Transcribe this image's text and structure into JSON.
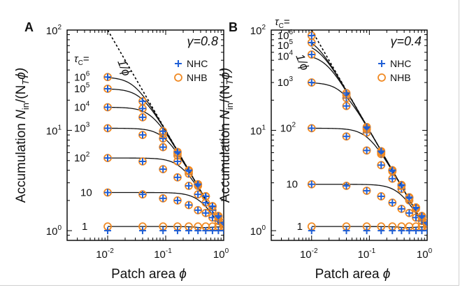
{
  "chart_data": [
    {
      "type": "scatter",
      "panel_label": "A",
      "xlabel_text": "Patch area ",
      "xlabel_symbol": "ϕ",
      "ylabel_text": "Accumulation ",
      "ylabel_symbol": "N",
      "ylabel_sub": "in",
      "ylabel_rest": "/(N",
      "ylabel_sub2": "T",
      "ylabel_end": "ϕ)",
      "xscale": "log",
      "yscale": "log",
      "xlim": [
        0.002,
        1
      ],
      "ylim": [
        0.8,
        100
      ],
      "x_ticks": [
        0.01,
        0.1,
        1
      ],
      "x_tick_labels": [
        {
          "base": "10",
          "exp": "-2"
        },
        {
          "base": "10",
          "exp": "-1"
        },
        {
          "base": "10",
          "exp": "0"
        }
      ],
      "y_ticks": [
        1,
        10,
        100
      ],
      "y_tick_labels": [
        {
          "base": "10",
          "exp": "0"
        },
        {
          "base": "10",
          "exp": "1"
        },
        {
          "base": "10",
          "exp": "2"
        }
      ],
      "gamma_text": "γ=0.8",
      "tau_header": "τC=",
      "tau_labels": [
        {
          "base": "1",
          "exp": ""
        },
        {
          "base": "10",
          "exp": ""
        },
        {
          "base": "10",
          "exp": "2"
        },
        {
          "base": "10",
          "exp": "3"
        },
        {
          "base": "10",
          "exp": "4"
        },
        {
          "base": "10",
          "exp": "5"
        },
        {
          "base": "10",
          "exp": "6"
        }
      ],
      "reference_line": {
        "label": "1/ϕ",
        "style": "dashed"
      },
      "legend": {
        "position": "top-right",
        "entries": [
          {
            "name": "NHC",
            "marker": "plus",
            "color": "#1f5fd6"
          },
          {
            "name": "NHB",
            "marker": "circle",
            "color": "#f08a24"
          }
        ]
      },
      "x": [
        0.01,
        0.04,
        0.09,
        0.16,
        0.25,
        0.36,
        0.49,
        0.64,
        0.81,
        1.0
      ],
      "series": [
        {
          "tau": "1",
          "theory_plateau": 1.1,
          "nhc": [
            1.0,
            1.0,
            1.0,
            1.0,
            1.0,
            1.0,
            1.0,
            1.0,
            1.0,
            1.0
          ],
          "nhb": [
            1.1,
            1.1,
            1.1,
            1.1,
            1.1,
            1.1,
            1.1,
            1.1,
            1.1,
            1.1
          ]
        },
        {
          "tau": "10",
          "theory_plateau": 2.4,
          "nhc": [
            2.4,
            2.3,
            2.1,
            2.0,
            1.8,
            1.6,
            1.5,
            1.35,
            1.25,
            1.15
          ],
          "nhb": [
            2.4,
            2.3,
            2.1,
            2.0,
            1.8,
            1.6,
            1.5,
            1.35,
            1.25,
            1.15
          ]
        },
        {
          "tau": "10^2",
          "theory_plateau": 5.3,
          "nhc": [
            5.3,
            4.9,
            4.1,
            3.4,
            2.8,
            2.3,
            1.9,
            1.6,
            1.35,
            1.2
          ],
          "nhb": [
            5.3,
            4.9,
            4.1,
            3.4,
            2.8,
            2.3,
            1.9,
            1.6,
            1.35,
            1.2
          ]
        },
        {
          "tau": "10^3",
          "theory_plateau": 10.5,
          "nhc": [
            10.5,
            9.0,
            6.8,
            4.9,
            3.7,
            2.8,
            2.2,
            1.75,
            1.4,
            1.2
          ],
          "nhb": [
            10.5,
            9.0,
            6.8,
            4.9,
            3.7,
            2.8,
            2.2,
            1.75,
            1.4,
            1.2
          ]
        },
        {
          "tau": "10^4",
          "theory_plateau": 17,
          "nhc": [
            17,
            13.5,
            8.3,
            5.6,
            3.9,
            2.9,
            2.2,
            1.75,
            1.4,
            1.2
          ],
          "nhb": [
            17,
            13.5,
            8.3,
            5.6,
            3.9,
            2.9,
            2.2,
            1.75,
            1.4,
            1.2
          ]
        },
        {
          "tau": "10^5",
          "theory_plateau": 26,
          "nhc": [
            26,
            16.5,
            9.2,
            5.9,
            4.0,
            2.9,
            2.2,
            1.75,
            1.4,
            1.2
          ],
          "nhb": [
            26,
            16.5,
            9.2,
            5.9,
            4.0,
            2.9,
            2.2,
            1.75,
            1.4,
            1.2
          ]
        },
        {
          "tau": "10^6",
          "theory_plateau": 34,
          "nhc": [
            34,
            19.5,
            9.8,
            6.1,
            4.0,
            2.9,
            2.2,
            1.75,
            1.4,
            1.2
          ],
          "nhb": [
            34,
            19.5,
            9.8,
            6.1,
            4.0,
            2.9,
            2.2,
            1.75,
            1.4,
            1.2
          ]
        }
      ]
    },
    {
      "type": "scatter",
      "panel_label": "B",
      "xlabel_text": "Patch area ",
      "xlabel_symbol": "ϕ",
      "ylabel_text": "Accumulation ",
      "ylabel_symbol": "N",
      "ylabel_sub": "in",
      "ylabel_rest": "/(N",
      "ylabel_sub2": "T",
      "ylabel_end": "ϕ)",
      "xscale": "log",
      "yscale": "log",
      "xlim": [
        0.002,
        1
      ],
      "ylim": [
        0.8,
        100
      ],
      "x_ticks": [
        0.01,
        0.1,
        1
      ],
      "x_tick_labels": [
        {
          "base": "10",
          "exp": "-2"
        },
        {
          "base": "10",
          "exp": "-1"
        },
        {
          "base": "10",
          "exp": "0"
        }
      ],
      "y_ticks": [
        1,
        10,
        100
      ],
      "y_tick_labels": [
        {
          "base": "10",
          "exp": "0"
        },
        {
          "base": "10",
          "exp": "1"
        },
        {
          "base": "10",
          "exp": "2"
        }
      ],
      "gamma_text": "γ=0.4",
      "tau_header": "τC=",
      "tau_labels": [
        {
          "base": "1",
          "exp": ""
        },
        {
          "base": "10",
          "exp": ""
        },
        {
          "base": "10",
          "exp": "2"
        },
        {
          "base": "10",
          "exp": "3"
        },
        {
          "base": "10",
          "exp": "4"
        },
        {
          "base": "10",
          "exp": "5"
        },
        {
          "base": "10",
          "exp": "6"
        }
      ],
      "reference_line": {
        "label": "1/ϕ",
        "style": "dashed"
      },
      "legend": {
        "position": "top-right",
        "entries": [
          {
            "name": "NHC",
            "marker": "plus",
            "color": "#1f5fd6"
          },
          {
            "name": "NHB",
            "marker": "circle",
            "color": "#f08a24"
          }
        ]
      },
      "x": [
        0.01,
        0.04,
        0.09,
        0.16,
        0.25,
        0.36,
        0.49,
        0.64,
        0.81,
        1.0
      ],
      "series": [
        {
          "tau": "1",
          "theory_plateau": 1.1,
          "nhc": [
            1.0,
            1.0,
            1.0,
            1.0,
            1.0,
            1.0,
            1.0,
            1.0,
            1.0,
            1.0
          ],
          "nhb": [
            1.1,
            1.1,
            1.1,
            1.1,
            1.1,
            1.1,
            1.1,
            1.1,
            1.1,
            1.1
          ]
        },
        {
          "tau": "10",
          "theory_plateau": 2.9,
          "nhc": [
            2.9,
            2.8,
            2.5,
            2.2,
            1.9,
            1.65,
            1.5,
            1.35,
            1.25,
            1.15
          ],
          "nhb": [
            2.9,
            2.8,
            2.5,
            2.2,
            1.9,
            1.65,
            1.5,
            1.35,
            1.25,
            1.15
          ]
        },
        {
          "tau": "10^2",
          "theory_plateau": 10.5,
          "nhc": [
            10.5,
            8.7,
            6.3,
            4.5,
            3.3,
            2.6,
            2.0,
            1.65,
            1.35,
            1.2
          ],
          "nhb": [
            10.5,
            8.7,
            6.3,
            4.5,
            3.3,
            2.6,
            2.0,
            1.65,
            1.35,
            1.2
          ]
        },
        {
          "tau": "10^3",
          "theory_plateau": 30,
          "nhc": [
            30,
            17.5,
            9.5,
            5.8,
            3.9,
            2.8,
            2.1,
            1.7,
            1.4,
            1.2
          ],
          "nhb": [
            30,
            17.5,
            9.5,
            5.8,
            3.9,
            2.8,
            2.1,
            1.7,
            1.4,
            1.2
          ]
        },
        {
          "tau": "10^4",
          "theory_plateau": 57,
          "nhc": [
            57,
            21,
            10.2,
            6.0,
            4.0,
            2.85,
            2.15,
            1.7,
            1.4,
            1.2
          ],
          "nhb": [
            57,
            21,
            10.2,
            6.0,
            4.0,
            2.85,
            2.15,
            1.7,
            1.4,
            1.2
          ]
        },
        {
          "tau": "10^5",
          "theory_plateau": 75,
          "nhc": [
            75,
            22.5,
            10.5,
            6.1,
            4.0,
            2.85,
            2.15,
            1.7,
            1.4,
            1.2
          ],
          "nhb": [
            75,
            22.5,
            10.5,
            6.1,
            4.0,
            2.85,
            2.15,
            1.7,
            1.4,
            1.2
          ]
        },
        {
          "tau": "10^6",
          "theory_plateau": 88,
          "nhc": [
            88,
            23.5,
            10.8,
            6.2,
            4.0,
            2.85,
            2.15,
            1.7,
            1.4,
            1.2
          ],
          "nhb": [
            88,
            23.5,
            10.8,
            6.2,
            4.0,
            2.85,
            2.15,
            1.7,
            1.4,
            1.2
          ]
        }
      ]
    }
  ]
}
